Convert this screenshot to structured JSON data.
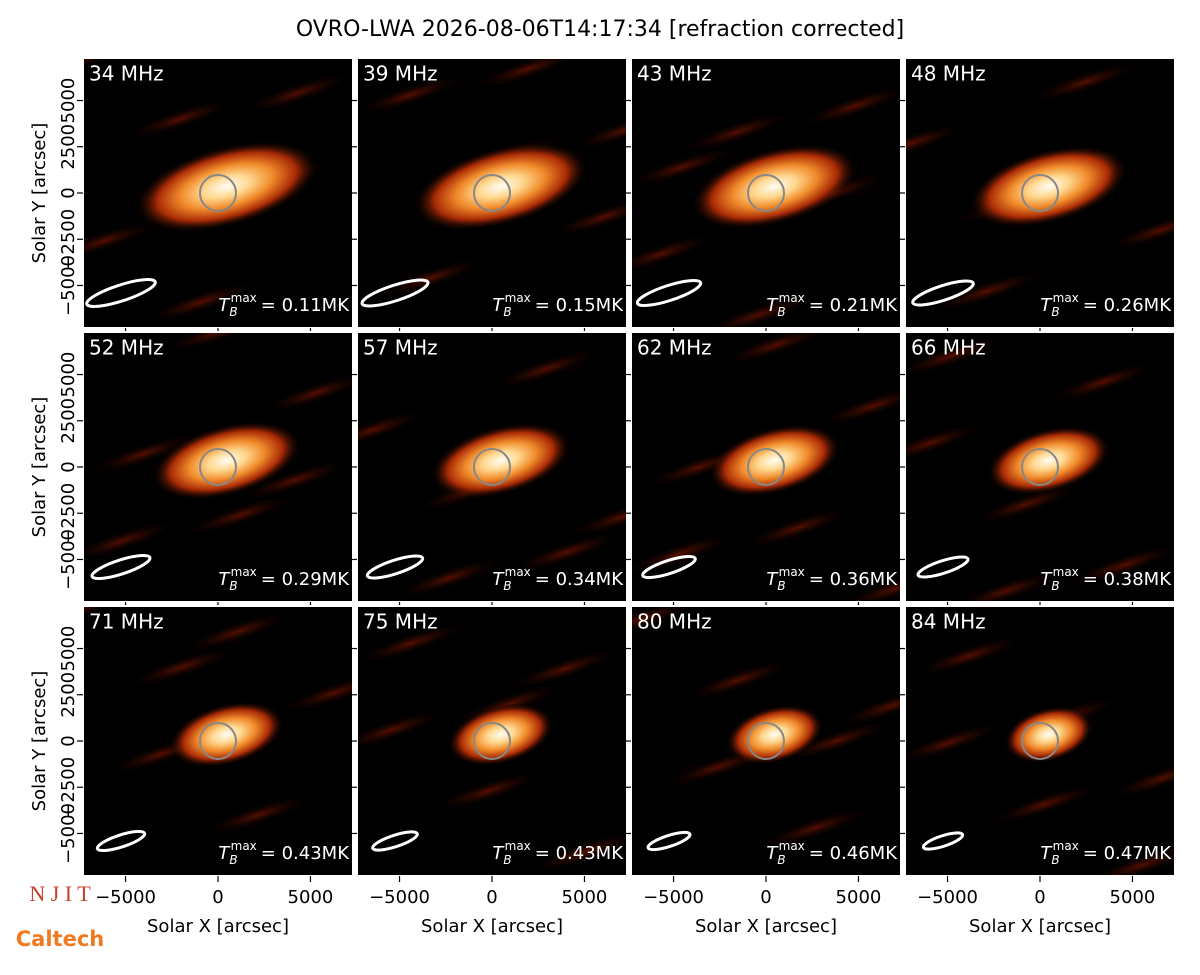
{
  "chart_data": {
    "type": "image-grid",
    "title": "OVRO-LWA 2026-08-06T14:17:34 [refraction corrected]",
    "xlabel": "Solar X [arcsec]",
    "ylabel": "Solar Y [arcsec]",
    "xlim": [
      -7300,
      7300
    ],
    "ylim": [
      -7300,
      7300
    ],
    "xticks": [
      {
        "value": -5000,
        "label": "−5000"
      },
      0,
      5000
    ],
    "yticks": [
      {
        "value": -5000,
        "label": "−5000"
      },
      {
        "value": -2500,
        "label": "−2500"
      },
      0,
      2500,
      5000
    ],
    "tb_symbol": "T",
    "tb_sub": "B",
    "tb_sup": "max",
    "panels": [
      {
        "title": "34 MHz",
        "tb": "= 0.11MK"
      },
      {
        "title": "39 MHz",
        "tb": "= 0.15MK"
      },
      {
        "title": "43 MHz",
        "tb": "= 0.21MK"
      },
      {
        "title": "48 MHz",
        "tb": "= 0.26MK"
      },
      {
        "title": "52 MHz",
        "tb": "= 0.29MK"
      },
      {
        "title": "57 MHz",
        "tb": "= 0.34MK"
      },
      {
        "title": "62 MHz",
        "tb": "= 0.36MK"
      },
      {
        "title": "66 MHz",
        "tb": "= 0.38MK"
      },
      {
        "title": "71 MHz",
        "tb": "= 0.43MK"
      },
      {
        "title": "75 MHz",
        "tb": "= 0.43MK"
      },
      {
        "title": "80 MHz",
        "tb": "= 0.46MK"
      },
      {
        "title": "84 MHz",
        "tb": "= 0.47MK"
      }
    ]
  },
  "logos": {
    "njit": "N J I T",
    "caltech": "Caltech"
  }
}
